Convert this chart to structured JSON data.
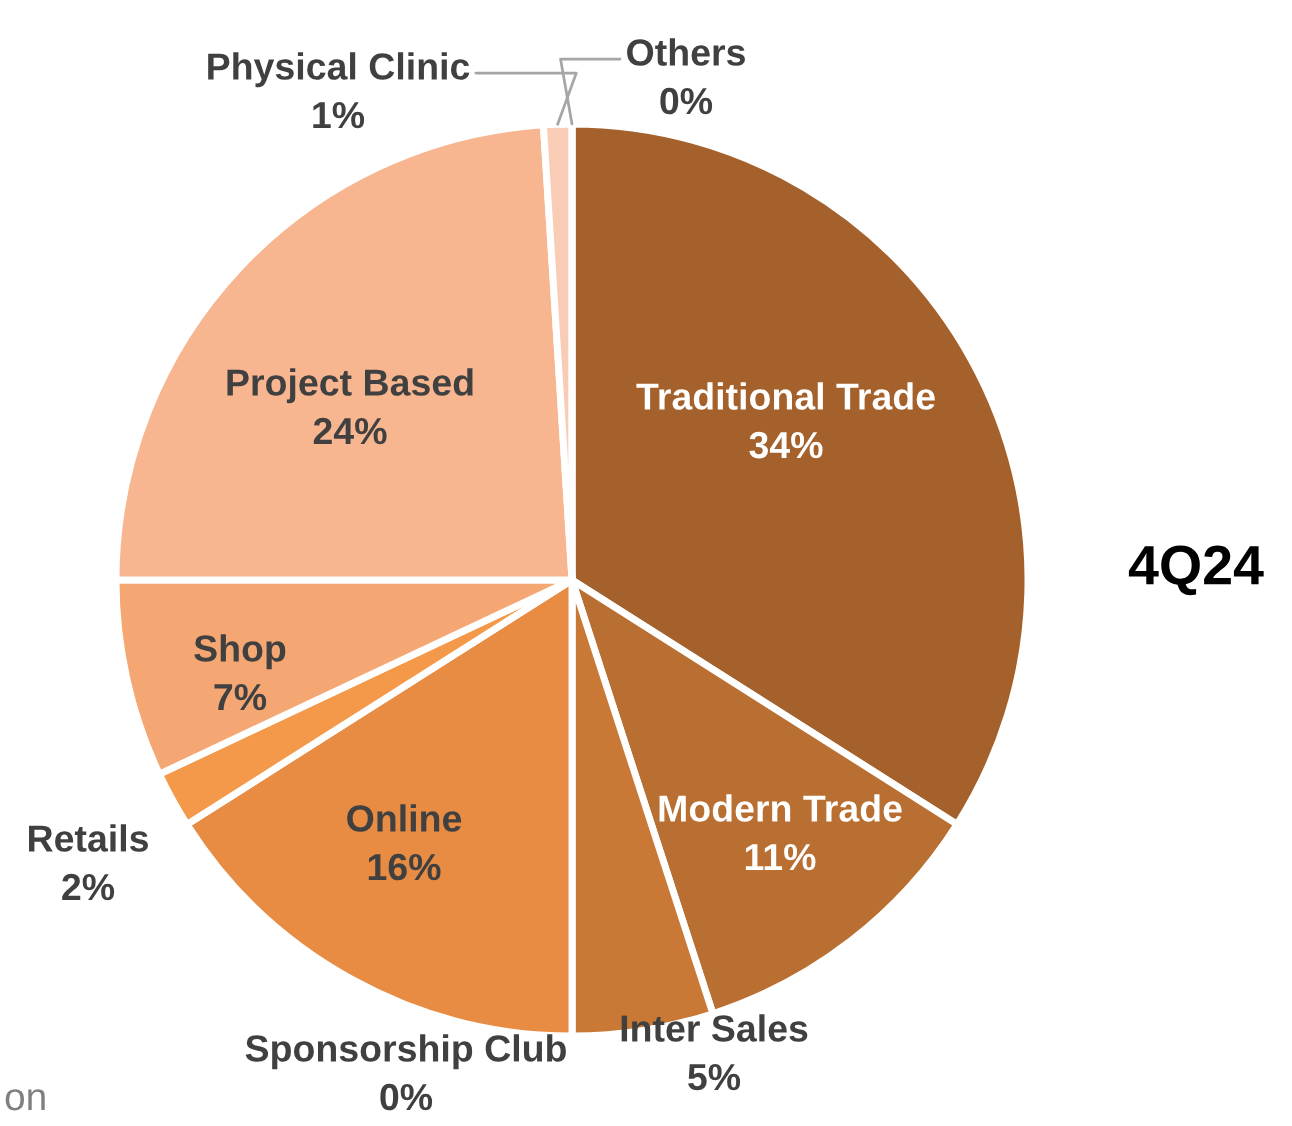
{
  "chart_data": {
    "type": "pie",
    "title": "4Q24",
    "categories": [
      "Traditional Trade",
      "Modern Trade",
      "Inter Sales",
      "Sponsorship Club",
      "Online",
      "Retails",
      "Shop",
      "Project Based",
      "Physical Clinic",
      "Others"
    ],
    "values": [
      34,
      11,
      5,
      0,
      16,
      2,
      7,
      24,
      1,
      0
    ],
    "value_labels": [
      "34%",
      "11%",
      "5%",
      "0%",
      "16%",
      "2%",
      "7%",
      "24%",
      "1%",
      "0%"
    ],
    "colors": [
      "#a5612b",
      "#b96f32",
      "#c97835",
      "#d58540",
      "#e88b43",
      "#f4994a",
      "#f5a773",
      "#f7b690",
      "#f9cdb5",
      "#fce0d0"
    ],
    "annotations": [
      "on"
    ]
  }
}
